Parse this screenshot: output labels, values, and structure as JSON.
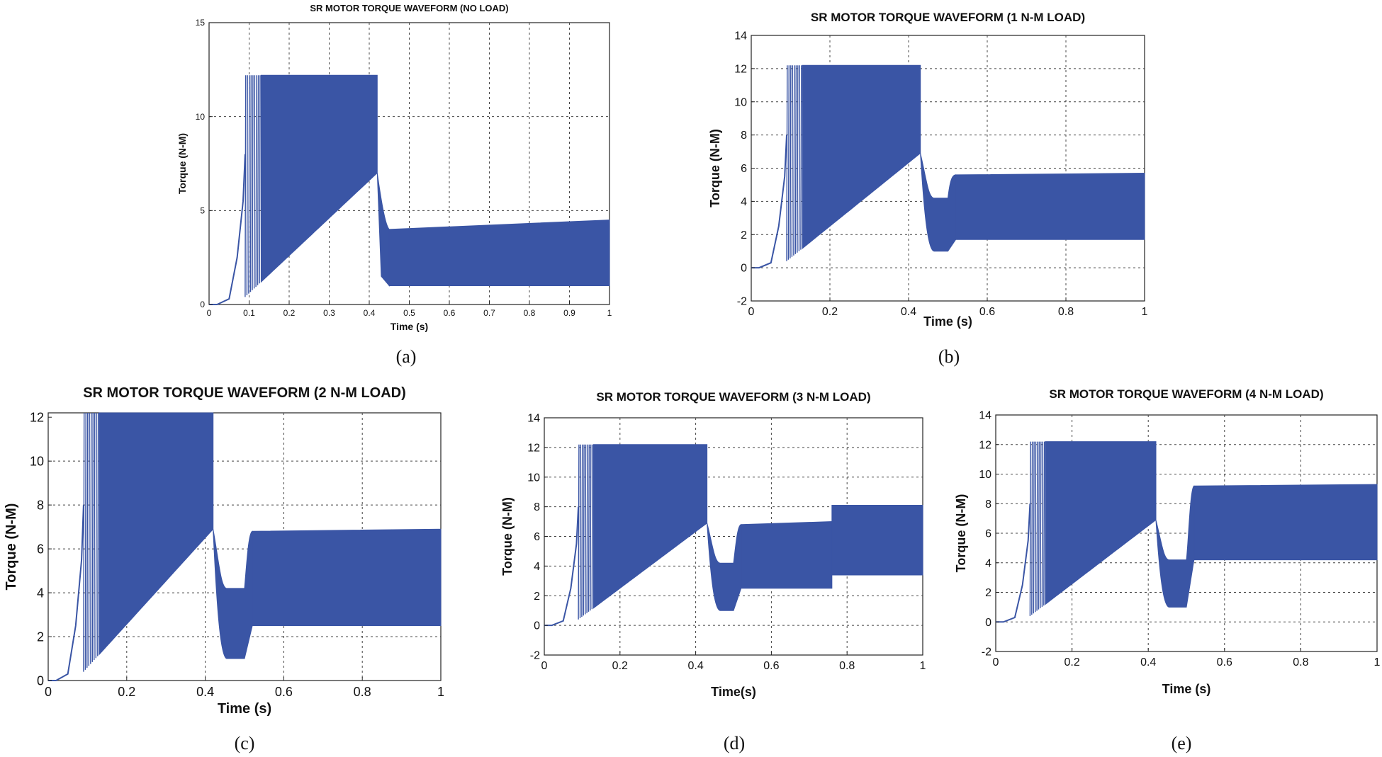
{
  "figure": {
    "captions": [
      "(a)",
      "(b)",
      "(c)",
      "(d)",
      "(e)"
    ]
  },
  "chart_data": [
    {
      "type": "line",
      "title": "SR MOTOR TORQUE WAVEFORM (NO LOAD)",
      "xlabel": "Time (s)",
      "ylabel": "Torque (N-M)",
      "xlim": [
        0,
        1
      ],
      "ylim": [
        0,
        15
      ],
      "xticks": [
        0,
        0.1,
        0.2,
        0.3,
        0.4,
        0.5,
        0.6,
        0.7,
        0.8,
        0.9,
        1
      ],
      "xtick_labels": [
        "0",
        "0.1",
        "0.2",
        "0.3",
        "0.4",
        "0.5",
        "0.6",
        "0.7",
        "0.8",
        "0.9",
        "1"
      ],
      "yticks": [
        0,
        5,
        10,
        15
      ],
      "ytick_labels": [
        "0",
        "5",
        "10",
        "15"
      ],
      "grid": true,
      "color": "#3a55a5",
      "series": [
        {
          "name": "Torque",
          "start_rise": [
            [
              0,
              0
            ],
            [
              0.02,
              0
            ],
            [
              0.05,
              0.3
            ],
            [
              0.07,
              2.5
            ],
            [
              0.085,
              5.5
            ],
            [
              0.09,
              8
            ]
          ],
          "peak": 12.2,
          "startup_end": 0.42,
          "lower_envelope_startup": [
            [
              0.09,
              0.4
            ],
            [
              0.42,
              7
            ]
          ],
          "transition": [
            [
              0.42,
              7
            ],
            [
              0.45,
              4
            ]
          ],
          "steady_state": {
            "from": 0.45,
            "to": 1.0,
            "upper": [
              [
                0.45,
                4
              ],
              [
                1.0,
                4.5
              ]
            ],
            "lower": [
              [
                0.45,
                1.0
              ],
              [
                1.0,
                1.0
              ]
            ]
          }
        }
      ]
    },
    {
      "type": "line",
      "title": "SR MOTOR TORQUE WAVEFORM (1 N-M LOAD)",
      "xlabel": "Time (s)",
      "ylabel": "Torque (N-M)",
      "xlim": [
        0,
        1
      ],
      "ylim": [
        -2,
        14
      ],
      "xticks": [
        0,
        0.2,
        0.4,
        0.6,
        0.8,
        1
      ],
      "xtick_labels": [
        "0",
        "0.2",
        "0.4",
        "0.6",
        "0.8",
        "1"
      ],
      "yticks": [
        -2,
        0,
        2,
        4,
        6,
        8,
        10,
        12,
        14
      ],
      "ytick_labels": [
        "-2",
        "0",
        "2",
        "4",
        "6",
        "8",
        "10",
        "12",
        "14"
      ],
      "grid": true,
      "color": "#3a55a5",
      "series": [
        {
          "name": "Torque",
          "start_rise": [
            [
              0,
              0
            ],
            [
              0.02,
              0
            ],
            [
              0.05,
              0.3
            ],
            [
              0.07,
              2.5
            ],
            [
              0.085,
              5.5
            ],
            [
              0.09,
              8
            ]
          ],
          "peak": 12.2,
          "startup_end": 0.43,
          "lower_envelope_startup": [
            [
              0.09,
              0.4
            ],
            [
              0.43,
              6.9
            ]
          ],
          "dip": {
            "from": 0.43,
            "to": 0.5,
            "upper": 4.2,
            "lower": 1.0
          },
          "steady_state": {
            "from": 0.52,
            "to": 1.0,
            "upper": [
              [
                0.52,
                5.6
              ],
              [
                1.0,
                5.7
              ]
            ],
            "lower": [
              [
                0.52,
                1.7
              ],
              [
                1.0,
                1.7
              ]
            ]
          }
        }
      ]
    },
    {
      "type": "line",
      "title": "SR MOTOR TORQUE WAVEFORM (2 N-M LOAD)",
      "xlabel": "Time (s)",
      "ylabel": "Torque (N-M)",
      "xlim": [
        0,
        1
      ],
      "ylim": [
        0,
        12.2
      ],
      "xticks": [
        0,
        0.2,
        0.4,
        0.6,
        0.8,
        1
      ],
      "xtick_labels": [
        "0",
        "0.2",
        "0.4",
        "0.6",
        "0.8",
        "1"
      ],
      "yticks": [
        0,
        2,
        4,
        6,
        8,
        10,
        12
      ],
      "ytick_labels": [
        "0",
        "2",
        "4",
        "6",
        "8",
        "10",
        "12"
      ],
      "grid": true,
      "color": "#3a55a5",
      "series": [
        {
          "name": "Torque",
          "start_rise": [
            [
              0,
              0
            ],
            [
              0.02,
              0
            ],
            [
              0.05,
              0.3
            ],
            [
              0.07,
              2.5
            ],
            [
              0.085,
              5.5
            ],
            [
              0.09,
              8
            ]
          ],
          "peak": 12.2,
          "startup_end": 0.42,
          "lower_envelope_startup": [
            [
              0.09,
              0.4
            ],
            [
              0.42,
              6.9
            ]
          ],
          "dip": {
            "from": 0.42,
            "to": 0.5,
            "upper": 4.2,
            "lower": 1.0
          },
          "steady_state": {
            "from": 0.52,
            "to": 1.0,
            "upper": [
              [
                0.52,
                6.8
              ],
              [
                1.0,
                6.9
              ]
            ],
            "lower": [
              [
                0.52,
                2.5
              ],
              [
                1.0,
                2.5
              ]
            ]
          }
        }
      ]
    },
    {
      "type": "line",
      "title": "SR MOTOR TORQUE WAVEFORM (3 N-M LOAD)",
      "xlabel": "Time(s)",
      "ylabel": "Torque (N-M)",
      "xlim": [
        0,
        1
      ],
      "ylim": [
        -2,
        14
      ],
      "xticks": [
        0,
        0.2,
        0.4,
        0.6,
        0.8,
        1
      ],
      "xtick_labels": [
        "0",
        "0.2",
        "0.4",
        "0.6",
        "0.8",
        "1"
      ],
      "yticks": [
        -2,
        0,
        2,
        4,
        6,
        8,
        10,
        12,
        14
      ],
      "ytick_labels": [
        "-2",
        "0",
        "2",
        "4",
        "6",
        "8",
        "10",
        "12",
        "14"
      ],
      "grid": true,
      "color": "#3a55a5",
      "series": [
        {
          "name": "Torque",
          "start_rise": [
            [
              0,
              0
            ],
            [
              0.02,
              0
            ],
            [
              0.05,
              0.3
            ],
            [
              0.07,
              2.5
            ],
            [
              0.085,
              5.5
            ],
            [
              0.09,
              8
            ]
          ],
          "peak": 12.2,
          "startup_end": 0.43,
          "lower_envelope_startup": [
            [
              0.09,
              0.4
            ],
            [
              0.43,
              6.9
            ]
          ],
          "dip": {
            "from": 0.43,
            "to": 0.5,
            "upper": 4.2,
            "lower": 1.0
          },
          "steady_state": {
            "from": 0.52,
            "to": 0.76,
            "upper": [
              [
                0.52,
                6.8
              ],
              [
                0.76,
                7.0
              ]
            ],
            "lower": [
              [
                0.52,
                2.5
              ],
              [
                0.76,
                2.5
              ]
            ]
          },
          "steady_state_2": {
            "from": 0.76,
            "to": 1.0,
            "upper": [
              [
                0.76,
                8.1
              ],
              [
                1.0,
                8.1
              ]
            ],
            "lower": [
              [
                0.76,
                3.4
              ],
              [
                1.0,
                3.4
              ]
            ]
          }
        }
      ]
    },
    {
      "type": "line",
      "title": "SR MOTOR TORQUE WAVEFORM (4 N-M LOAD)",
      "xlabel": "Time (s)",
      "ylabel": "Torque (N-M)",
      "xlim": [
        0,
        1
      ],
      "ylim": [
        -2,
        14
      ],
      "xticks": [
        0,
        0.2,
        0.4,
        0.6,
        0.8,
        1
      ],
      "xtick_labels": [
        "0",
        "0.2",
        "0.4",
        "0.6",
        "0.8",
        "1"
      ],
      "yticks": [
        -2,
        0,
        2,
        4,
        6,
        8,
        10,
        12,
        14
      ],
      "ytick_labels": [
        "-2",
        "0",
        "2",
        "4",
        "6",
        "8",
        "10",
        "12",
        "14"
      ],
      "grid": true,
      "color": "#3a55a5",
      "series": [
        {
          "name": "Torque",
          "start_rise": [
            [
              0,
              0
            ],
            [
              0.02,
              0
            ],
            [
              0.05,
              0.3
            ],
            [
              0.07,
              2.5
            ],
            [
              0.085,
              5.5
            ],
            [
              0.09,
              8
            ]
          ],
          "peak": 12.2,
          "startup_end": 0.42,
          "lower_envelope_startup": [
            [
              0.09,
              0.4
            ],
            [
              0.42,
              6.9
            ]
          ],
          "dip": {
            "from": 0.42,
            "to": 0.5,
            "upper": 4.2,
            "lower": 1.0
          },
          "steady_state": {
            "from": 0.52,
            "to": 1.0,
            "upper": [
              [
                0.52,
                9.2
              ],
              [
                1.0,
                9.3
              ]
            ],
            "lower": [
              [
                0.52,
                4.2
              ],
              [
                1.0,
                4.2
              ]
            ]
          }
        }
      ]
    }
  ]
}
